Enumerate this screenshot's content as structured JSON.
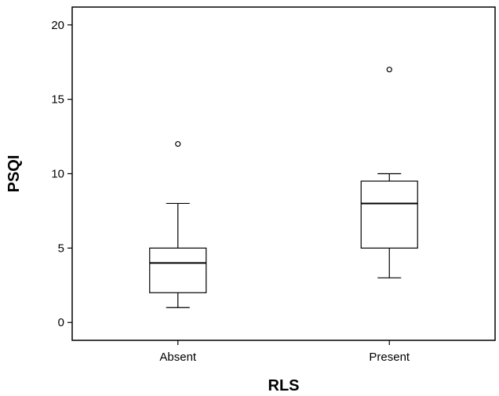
{
  "chart_data": {
    "type": "box",
    "title": "",
    "xlabel": "RLS",
    "ylabel": "PSQI",
    "ylim": [
      -1.2,
      21.2
    ],
    "yticks": [
      0,
      5,
      10,
      15,
      20
    ],
    "ytick_labels": [
      "0",
      "5",
      "10",
      "15",
      "20"
    ],
    "categories": [
      "Absent",
      "Present"
    ],
    "series": [
      {
        "category": "Absent",
        "whisker_low": 1,
        "q1": 2,
        "median": 4,
        "q3": 5,
        "whisker_high": 8,
        "outliers": [
          12
        ]
      },
      {
        "category": "Present",
        "whisker_low": 3,
        "q1": 5,
        "median": 8,
        "q3": 9.5,
        "whisker_high": 10,
        "outliers": [
          17
        ]
      }
    ],
    "grid": false,
    "legend": "none",
    "colors": {
      "box_fill": "#ffffff",
      "stroke": "#000000"
    }
  }
}
